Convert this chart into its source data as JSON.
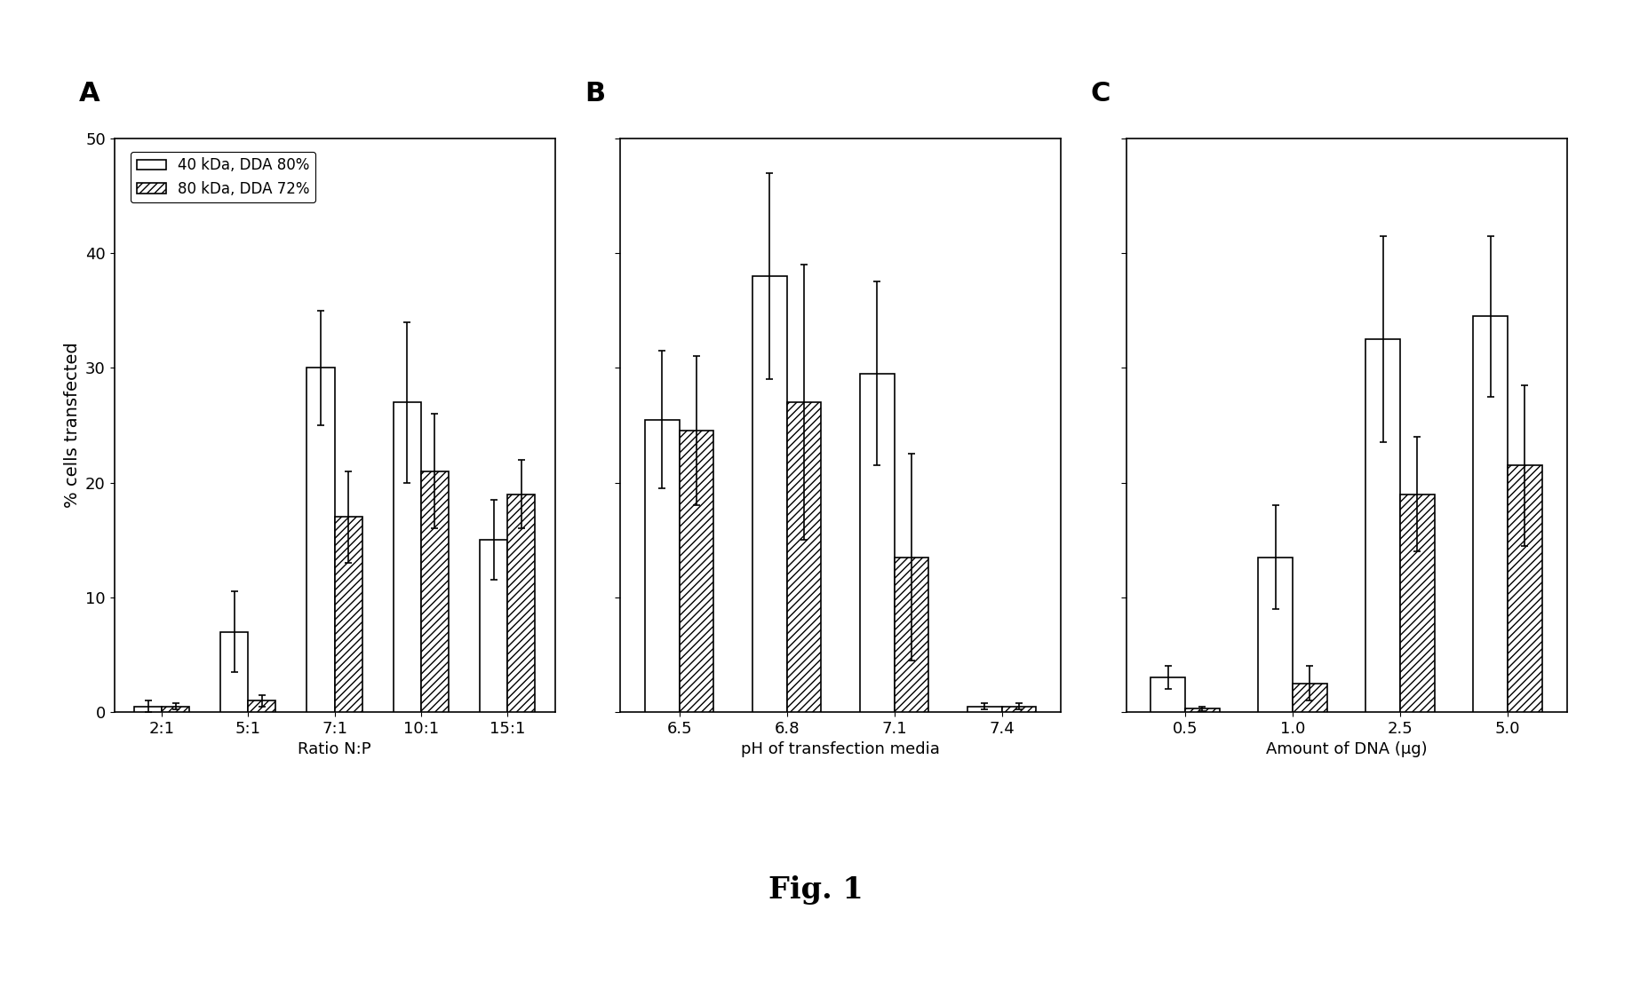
{
  "panel_A": {
    "label": "A",
    "xlabel": "Ratio N:P",
    "categories": [
      "2:1",
      "5:1",
      "7:1",
      "10:1",
      "15:1"
    ],
    "bar1_values": [
      0.5,
      7.0,
      30.0,
      27.0,
      15.0
    ],
    "bar1_errors": [
      0.5,
      3.5,
      5.0,
      7.0,
      3.5
    ],
    "bar2_values": [
      0.5,
      1.0,
      17.0,
      21.0,
      19.0
    ],
    "bar2_errors": [
      0.3,
      0.5,
      4.0,
      5.0,
      3.0
    ]
  },
  "panel_B": {
    "label": "B",
    "xlabel": "pH of transfection media",
    "categories": [
      "6.5",
      "6.8",
      "7.1",
      "7.4"
    ],
    "bar1_values": [
      25.5,
      38.0,
      29.5,
      0.5
    ],
    "bar1_errors": [
      6.0,
      9.0,
      8.0,
      0.3
    ],
    "bar2_values": [
      24.5,
      27.0,
      13.5,
      0.5
    ],
    "bar2_errors": [
      6.5,
      12.0,
      9.0,
      0.3
    ]
  },
  "panel_C": {
    "label": "C",
    "xlabel": "Amount of DNA (μg)",
    "categories": [
      "0.5",
      "1.0",
      "2.5",
      "5.0"
    ],
    "bar1_values": [
      3.0,
      13.5,
      32.5,
      34.5
    ],
    "bar1_errors": [
      1.0,
      4.5,
      9.0,
      7.0
    ],
    "bar2_values": [
      0.3,
      2.5,
      19.0,
      21.5
    ],
    "bar2_errors": [
      0.2,
      1.5,
      5.0,
      7.0
    ]
  },
  "ylabel": "% cells transfected",
  "ylim": [
    0,
    50
  ],
  "yticks": [
    0,
    10,
    20,
    30,
    40,
    50
  ],
  "legend_labels": [
    "40 kDa, DDA 80%",
    "80 kDa, DDA 72%"
  ],
  "fig_label": "Fig. 1",
  "bar_width": 0.32,
  "bar1_color": "white",
  "bar2_color": "white",
  "bar2_hatch": "////",
  "bar_edgecolor": "black",
  "background_color": "white"
}
